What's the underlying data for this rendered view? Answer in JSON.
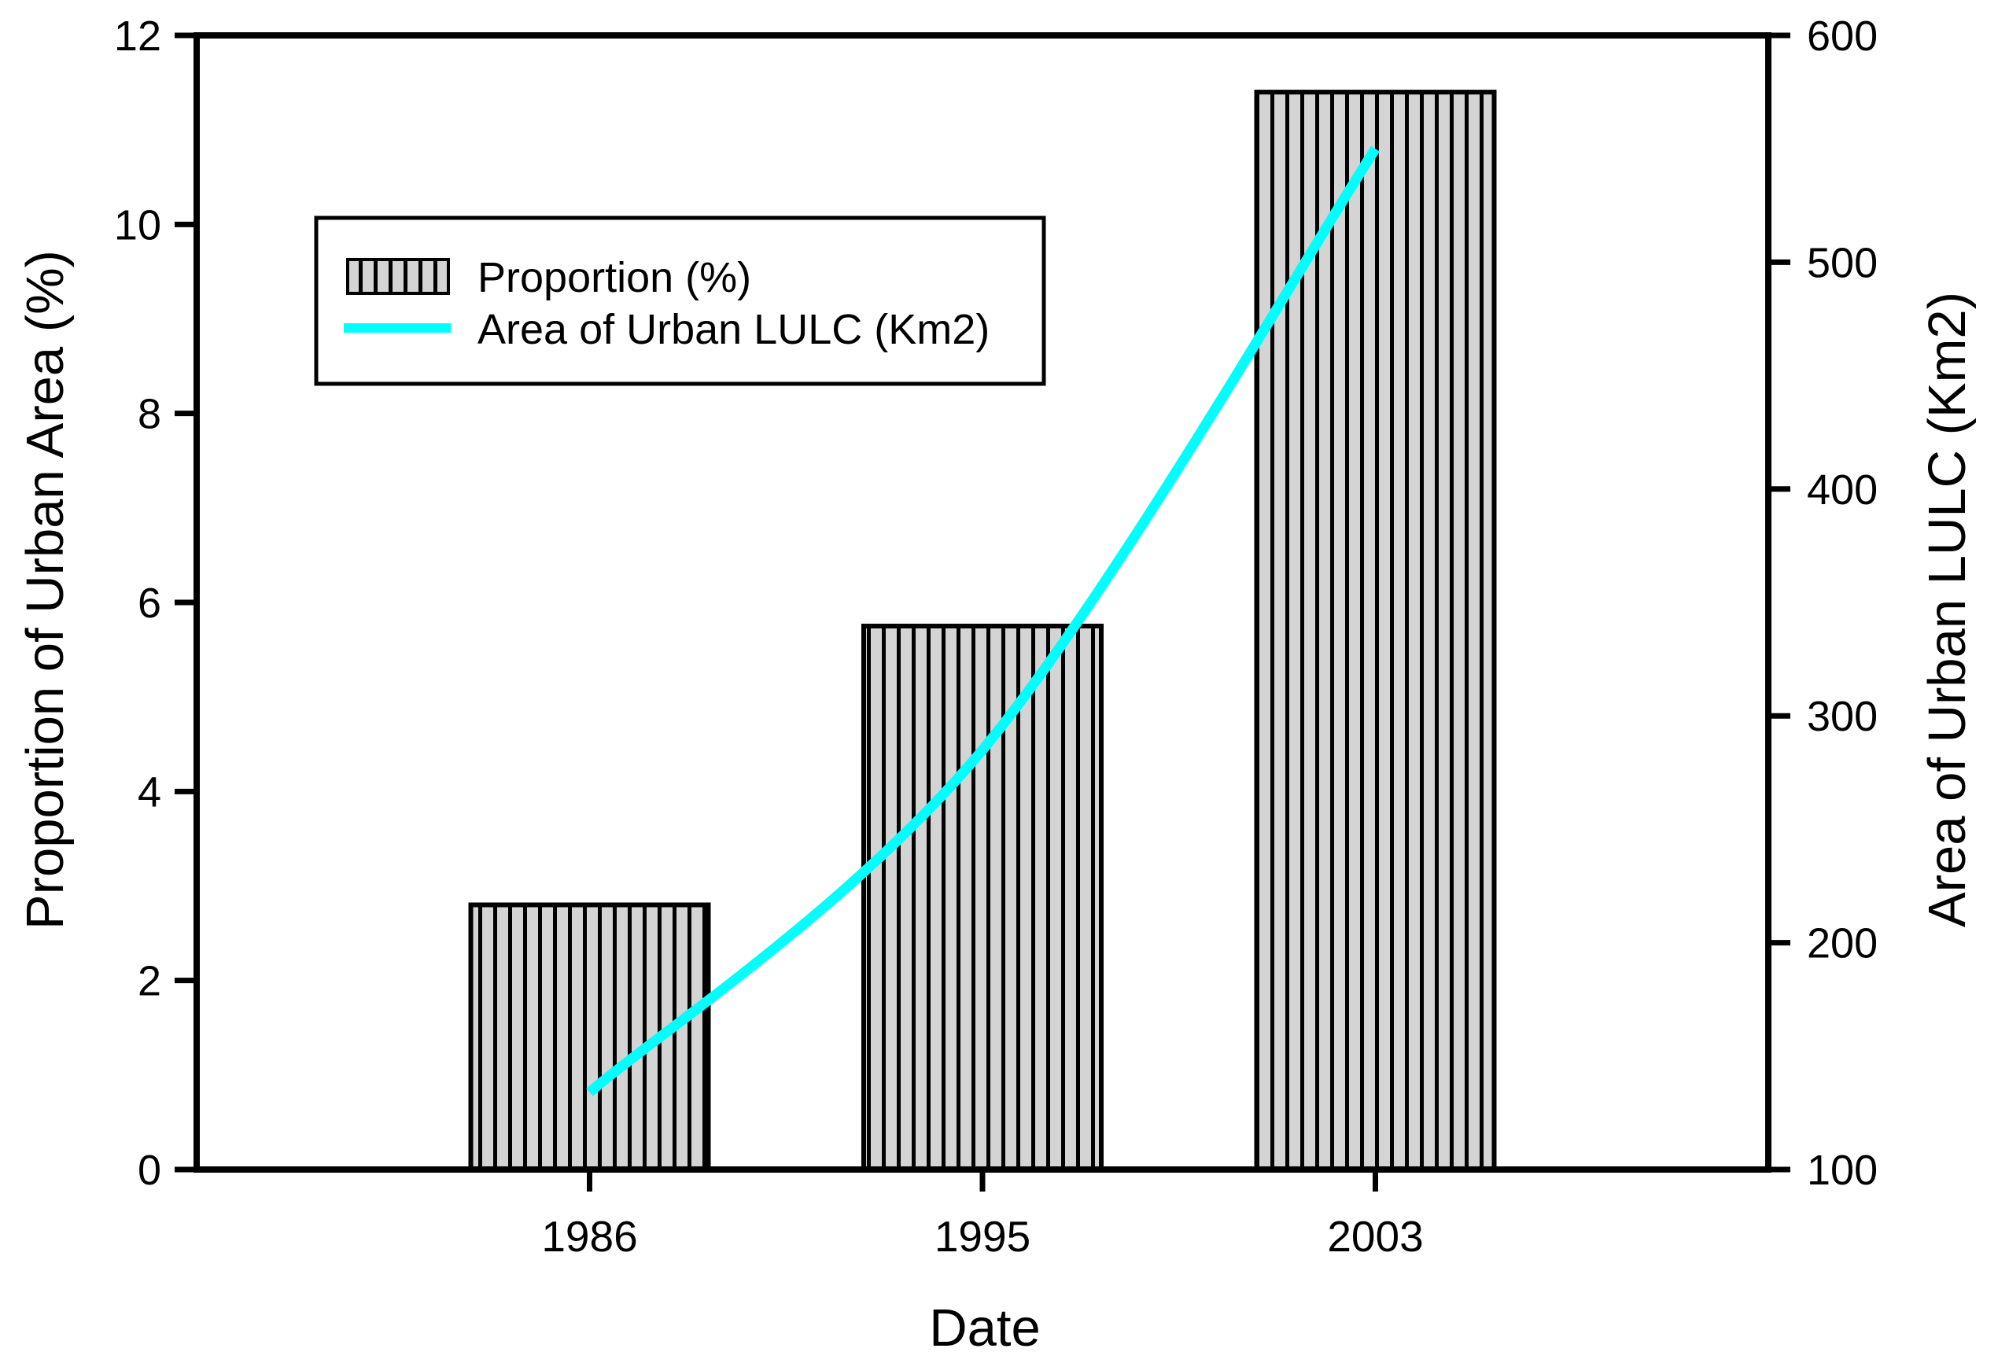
{
  "figure": {
    "background": "#ffffff",
    "axis_color": "#000000"
  },
  "chart_data": {
    "type": "bar+line",
    "categories": [
      "1986",
      "1995",
      "2003"
    ],
    "series": [
      {
        "name": "Proportion (%)",
        "type": "bar",
        "axis": "left",
        "values": [
          2.8,
          5.75,
          11.4
        ],
        "fill": "#d4d4d4",
        "hatch": "vertical",
        "hatch_color": "#000000"
      },
      {
        "name": "Area of Urban LULC (Km2)",
        "type": "line",
        "axis": "right",
        "values": [
          134,
          285,
          550
        ],
        "color": "#00ffff"
      }
    ],
    "xlabel": "Date",
    "left_axis": {
      "label": "Proportion of Urban Area (%)",
      "min": 0,
      "max": 12,
      "ticks": [
        0,
        2,
        4,
        6,
        8,
        10,
        12
      ]
    },
    "right_axis": {
      "label": "Area of Urban LULC (Km2)",
      "min": 100,
      "max": 600,
      "ticks": [
        100,
        200,
        300,
        400,
        500,
        600
      ]
    },
    "legend": {
      "position": "upper-left",
      "entries": [
        "Proportion (%)",
        "Area of Urban LULC (Km2)"
      ]
    },
    "grid": false
  }
}
